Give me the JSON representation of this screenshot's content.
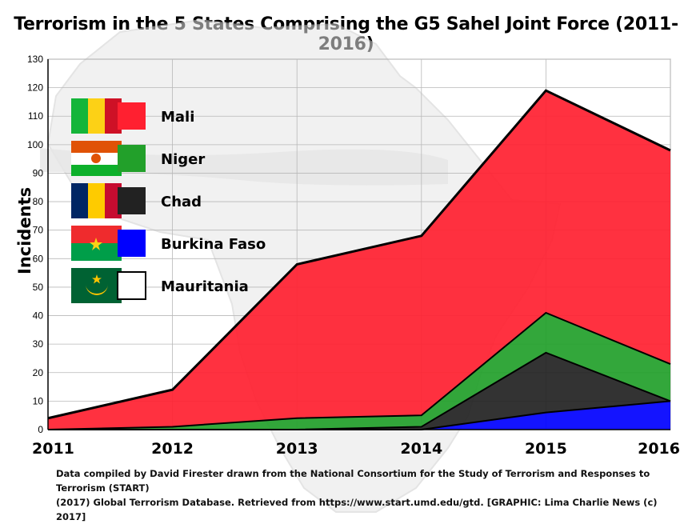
{
  "chart_data": {
    "type": "area",
    "title": "Terrorism in the 5 States Comprising the G5 Sahel Joint Force (2011-2016)",
    "ylabel": "Incidents",
    "xlabel": "",
    "x": [
      "2011",
      "2012",
      "2013",
      "2014",
      "2015",
      "2016"
    ],
    "ylim": [
      0,
      130
    ],
    "y_ticks": [
      0,
      10,
      20,
      30,
      40,
      50,
      60,
      70,
      80,
      90,
      100,
      110,
      120,
      130
    ],
    "stacked": true,
    "grid": true,
    "legend_position": "top-left",
    "series": [
      {
        "name": "Burkina Faso",
        "color": "#0000ff",
        "values": [
          0,
          0,
          0,
          0,
          6,
          10
        ],
        "flag": "burkina-faso-flag"
      },
      {
        "name": "Chad",
        "color": "#222222",
        "values": [
          0,
          0,
          0,
          1,
          21,
          0
        ],
        "flag": "chad-flag"
      },
      {
        "name": "Niger",
        "color": "#22a02a",
        "values": [
          0,
          1,
          4,
          4,
          14,
          13
        ],
        "flag": "niger-flag"
      },
      {
        "name": "Mali",
        "color": "#ff2030",
        "values": [
          4,
          13,
          54,
          63,
          78,
          75
        ],
        "flag": "mali-flag"
      },
      {
        "name": "Mauritania",
        "color": "#ffffff",
        "values": [
          0,
          0,
          0,
          0,
          0,
          0
        ],
        "flag": "mauritania-flag"
      }
    ],
    "legend_order": [
      "Mali",
      "Niger",
      "Chad",
      "Burkina Faso",
      "Mauritania"
    ],
    "source_lines": [
      "Data compiled by David Firester drawn from the National Consortium for the Study of Terrorism and Responses to Terrorism (START)",
      "(2017) Global Terrorism Database. Retrieved from https://www.start.umd.edu/gtd.  [GRAPHIC: Lima Charlie News (c) 2017]"
    ],
    "background": "africa-map-watermark"
  }
}
